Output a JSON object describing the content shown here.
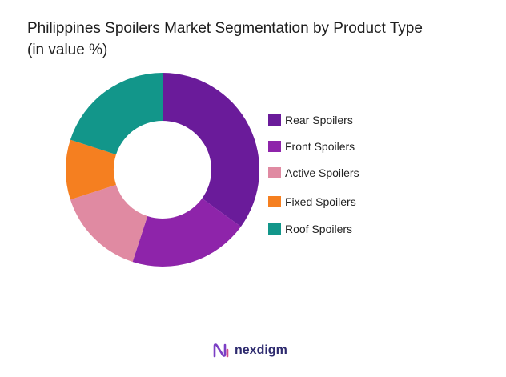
{
  "header": {
    "title_line1": "Philippines Spoilers Market Segmentation by Product Type",
    "title_line2": "(in value %)"
  },
  "chart_data": {
    "type": "pie",
    "donut": true,
    "categories": [
      "Rear Spoilers",
      "Front Spoilers",
      "Active Spoilers",
      "Fixed Spoilers",
      "Roof Spoilers"
    ],
    "values": [
      35,
      20,
      15,
      10,
      20
    ],
    "colors": [
      "#6a1b9a",
      "#8e24aa",
      "#e08aa2",
      "#f57f20",
      "#12968a"
    ],
    "legend_position": "right"
  },
  "brand": {
    "name": "nexdigm",
    "logo_icon": "nexdigm-logo-icon"
  }
}
